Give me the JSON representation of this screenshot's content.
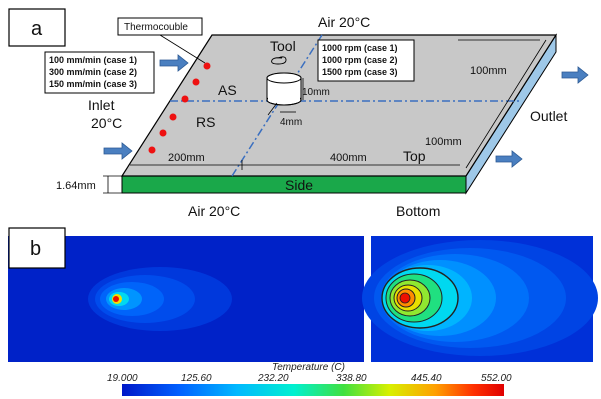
{
  "panel_a": {
    "letter": "a",
    "thermocouple": "Thermocouble",
    "air_top": "Air 20°C",
    "air_bottom": "Air 20°C",
    "tool": "Tool",
    "feed_rates": [
      "100 mm/min (case 1)",
      "300 mm/min (case 2)",
      "150 mm/min (case 3)"
    ],
    "rpms": [
      "1000 rpm (case 1)",
      "1000 rpm (case 2)",
      "1500 rpm (case 3)"
    ],
    "inlet": "Inlet",
    "inlet_temp": "20°C",
    "outlet": "Outlet",
    "as": "AS",
    "rs": "RS",
    "dim_tool_h": "10mm",
    "dim_tool_d": "4mm",
    "dim_width_right": "100mm",
    "dim_width_front": "100mm",
    "dim_len1": "200mm",
    "dim_len2": "400mm",
    "thickness": "1.64mm",
    "top": "Top",
    "side": "Side",
    "bottom": "Bottom"
  },
  "panel_b": {
    "letter": "b",
    "scale_title": "Temperature (C)",
    "scale_ticks": [
      "19.000",
      "125.60",
      "232.20",
      "338.80",
      "445.40",
      "552.00"
    ],
    "scale_colors": [
      "#0018c8",
      "#0040e8",
      "#0070ff",
      "#00a0ff",
      "#00d0ff",
      "#00f0e0",
      "#00e890",
      "#30e040",
      "#90f000",
      "#e0f000",
      "#ffc000",
      "#ff7000",
      "#ff2000",
      "#e80000"
    ]
  }
}
